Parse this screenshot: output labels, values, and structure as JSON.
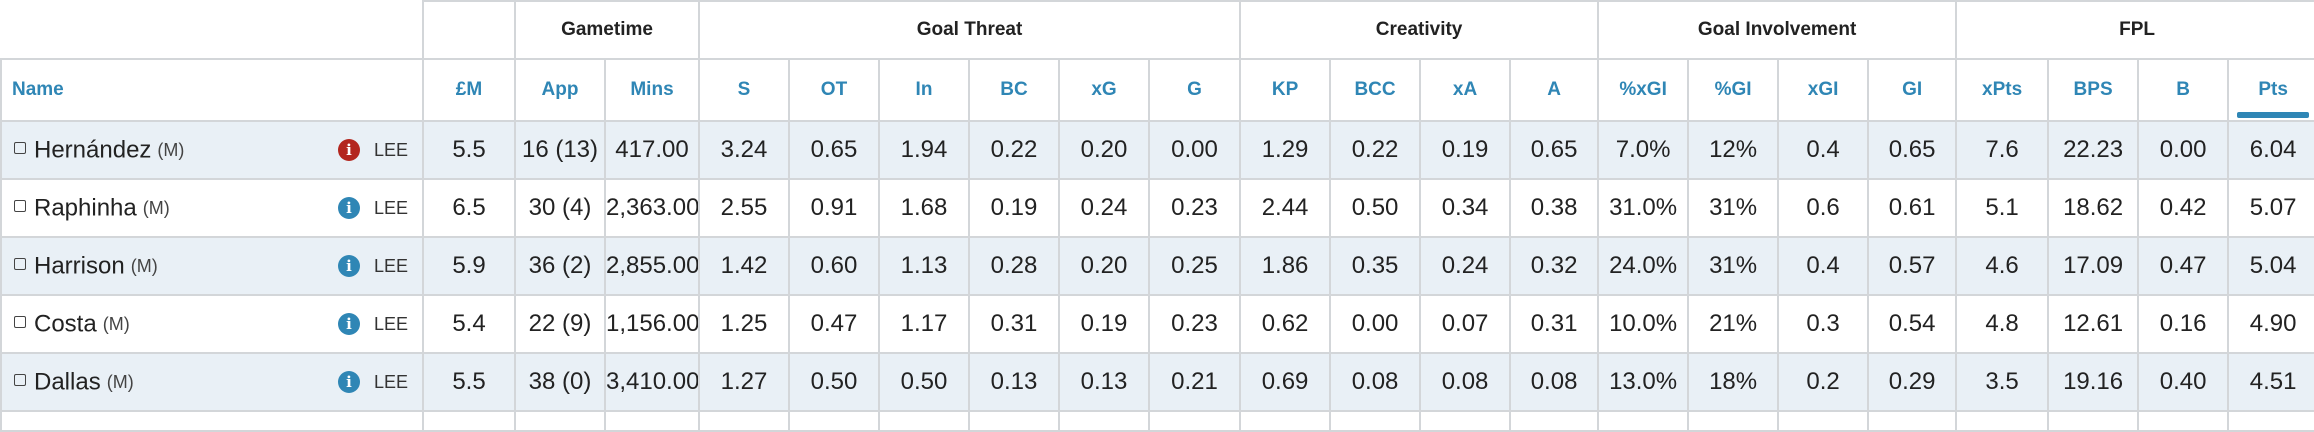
{
  "groups": {
    "gametime": "Gametime",
    "goal_threat": "Goal Threat",
    "creativity": "Creativity",
    "goal_involvement": "Goal Involvement",
    "fpl": "FPL"
  },
  "columns": [
    "Name",
    "£M",
    "App",
    "Mins",
    "S",
    "OT",
    "In",
    "BC",
    "xG",
    "G",
    "KP",
    "BCC",
    "xA",
    "A",
    "%xGI",
    "%GI",
    "xGI",
    "GI",
    "xPts",
    "BPS",
    "B",
    "Pts"
  ],
  "sorted_column": "Pts",
  "colors": {
    "header_text": "#2f86b5",
    "row_alt": "#e9f0f6",
    "icon_blue": "#2f86b5",
    "icon_red": "#b3261e"
  },
  "rows": [
    {
      "name": "Hernández",
      "pos": "(M)",
      "icon": "info-red-icon",
      "icon_glyph": "i",
      "team": "LEE",
      "values": [
        "5.5",
        "16 (13)",
        "417.00",
        "3.24",
        "0.65",
        "1.94",
        "0.22",
        "0.20",
        "0.00",
        "1.29",
        "0.22",
        "0.19",
        "0.65",
        "7.0%",
        "12%",
        "0.4",
        "0.65",
        "7.6",
        "22.23",
        "0.00",
        "6.04"
      ]
    },
    {
      "name": "Raphinha",
      "pos": "(M)",
      "icon": "info-blue-icon",
      "icon_glyph": "i",
      "team": "LEE",
      "values": [
        "6.5",
        "30 (4)",
        "2,363.00",
        "2.55",
        "0.91",
        "1.68",
        "0.19",
        "0.24",
        "0.23",
        "2.44",
        "0.50",
        "0.34",
        "0.38",
        "31.0%",
        "31%",
        "0.6",
        "0.61",
        "5.1",
        "18.62",
        "0.42",
        "5.07"
      ]
    },
    {
      "name": "Harrison",
      "pos": "(M)",
      "icon": "info-blue-icon",
      "icon_glyph": "i",
      "team": "LEE",
      "values": [
        "5.9",
        "36 (2)",
        "2,855.00",
        "1.42",
        "0.60",
        "1.13",
        "0.28",
        "0.20",
        "0.25",
        "1.86",
        "0.35",
        "0.24",
        "0.32",
        "24.0%",
        "31%",
        "0.4",
        "0.57",
        "4.6",
        "17.09",
        "0.47",
        "5.04"
      ]
    },
    {
      "name": "Costa",
      "pos": "(M)",
      "icon": "info-blue-icon",
      "icon_glyph": "i",
      "team": "LEE",
      "values": [
        "5.4",
        "22 (9)",
        "1,156.00",
        "1.25",
        "0.47",
        "1.17",
        "0.31",
        "0.19",
        "0.23",
        "0.62",
        "0.00",
        "0.07",
        "0.31",
        "10.0%",
        "21%",
        "0.3",
        "0.54",
        "4.8",
        "12.61",
        "0.16",
        "4.90"
      ]
    },
    {
      "name": "Dallas",
      "pos": "(M)",
      "icon": "info-blue-icon",
      "icon_glyph": "i",
      "team": "LEE",
      "values": [
        "5.5",
        "38 (0)",
        "3,410.00",
        "1.27",
        "0.50",
        "0.50",
        "0.13",
        "0.13",
        "0.21",
        "0.69",
        "0.08",
        "0.08",
        "0.08",
        "13.0%",
        "18%",
        "0.2",
        "0.29",
        "3.5",
        "19.16",
        "0.40",
        "4.51"
      ]
    }
  ]
}
